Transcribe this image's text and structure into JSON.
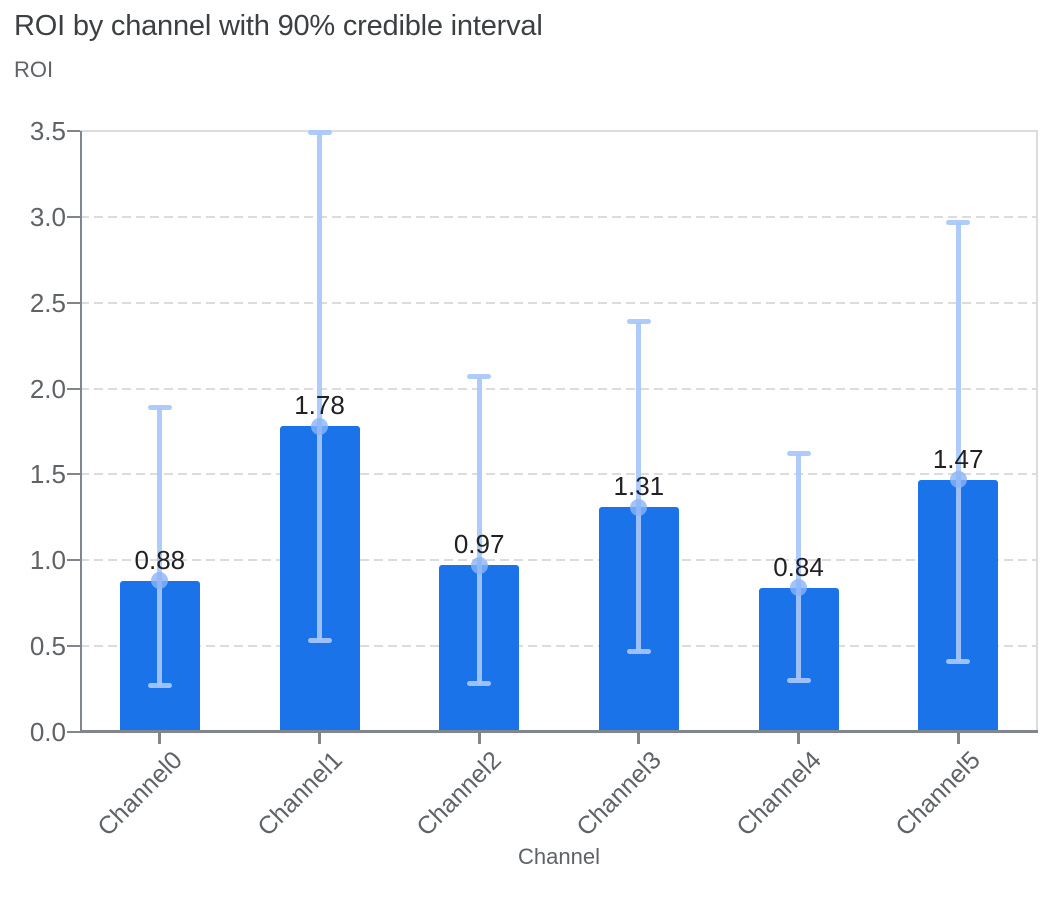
{
  "title": "ROI by channel with 90% credible interval",
  "y_axis_title": "ROI",
  "x_axis_title": "Channel",
  "colors": {
    "background": "#ffffff",
    "bar": "#1a73e8",
    "error_bar": "#a8c7fa",
    "marker_dot": "#8ab4f8",
    "title_text": "#3c4043",
    "axis_text": "#5f6368",
    "value_label_text": "#202124",
    "gridline": "#dadce0",
    "axis_line": "#80868b"
  },
  "chart_data": {
    "type": "bar",
    "title": "ROI by channel with 90% credible interval",
    "xlabel": "Channel",
    "ylabel": "ROI",
    "categories": [
      "Channel0",
      "Channel1",
      "Channel2",
      "Channel3",
      "Channel4",
      "Channel5"
    ],
    "values": [
      0.88,
      1.78,
      0.97,
      1.31,
      0.84,
      1.47
    ],
    "value_labels": [
      "0.88",
      "1.78",
      "0.97",
      "1.31",
      "0.84",
      "1.47"
    ],
    "error_low": [
      0.27,
      0.53,
      0.28,
      0.47,
      0.3,
      0.41
    ],
    "error_high": [
      1.89,
      3.49,
      2.07,
      2.39,
      1.62,
      2.97
    ],
    "ylim": [
      0,
      3.5
    ],
    "yticks": [
      0.0,
      0.5,
      1.0,
      1.5,
      2.0,
      2.5,
      3.0,
      3.5
    ],
    "ytick_labels": [
      "0.0",
      "0.5",
      "1.0",
      "1.5",
      "2.0",
      "2.5",
      "3.0",
      "3.5"
    ],
    "grid": true,
    "legend": false
  }
}
